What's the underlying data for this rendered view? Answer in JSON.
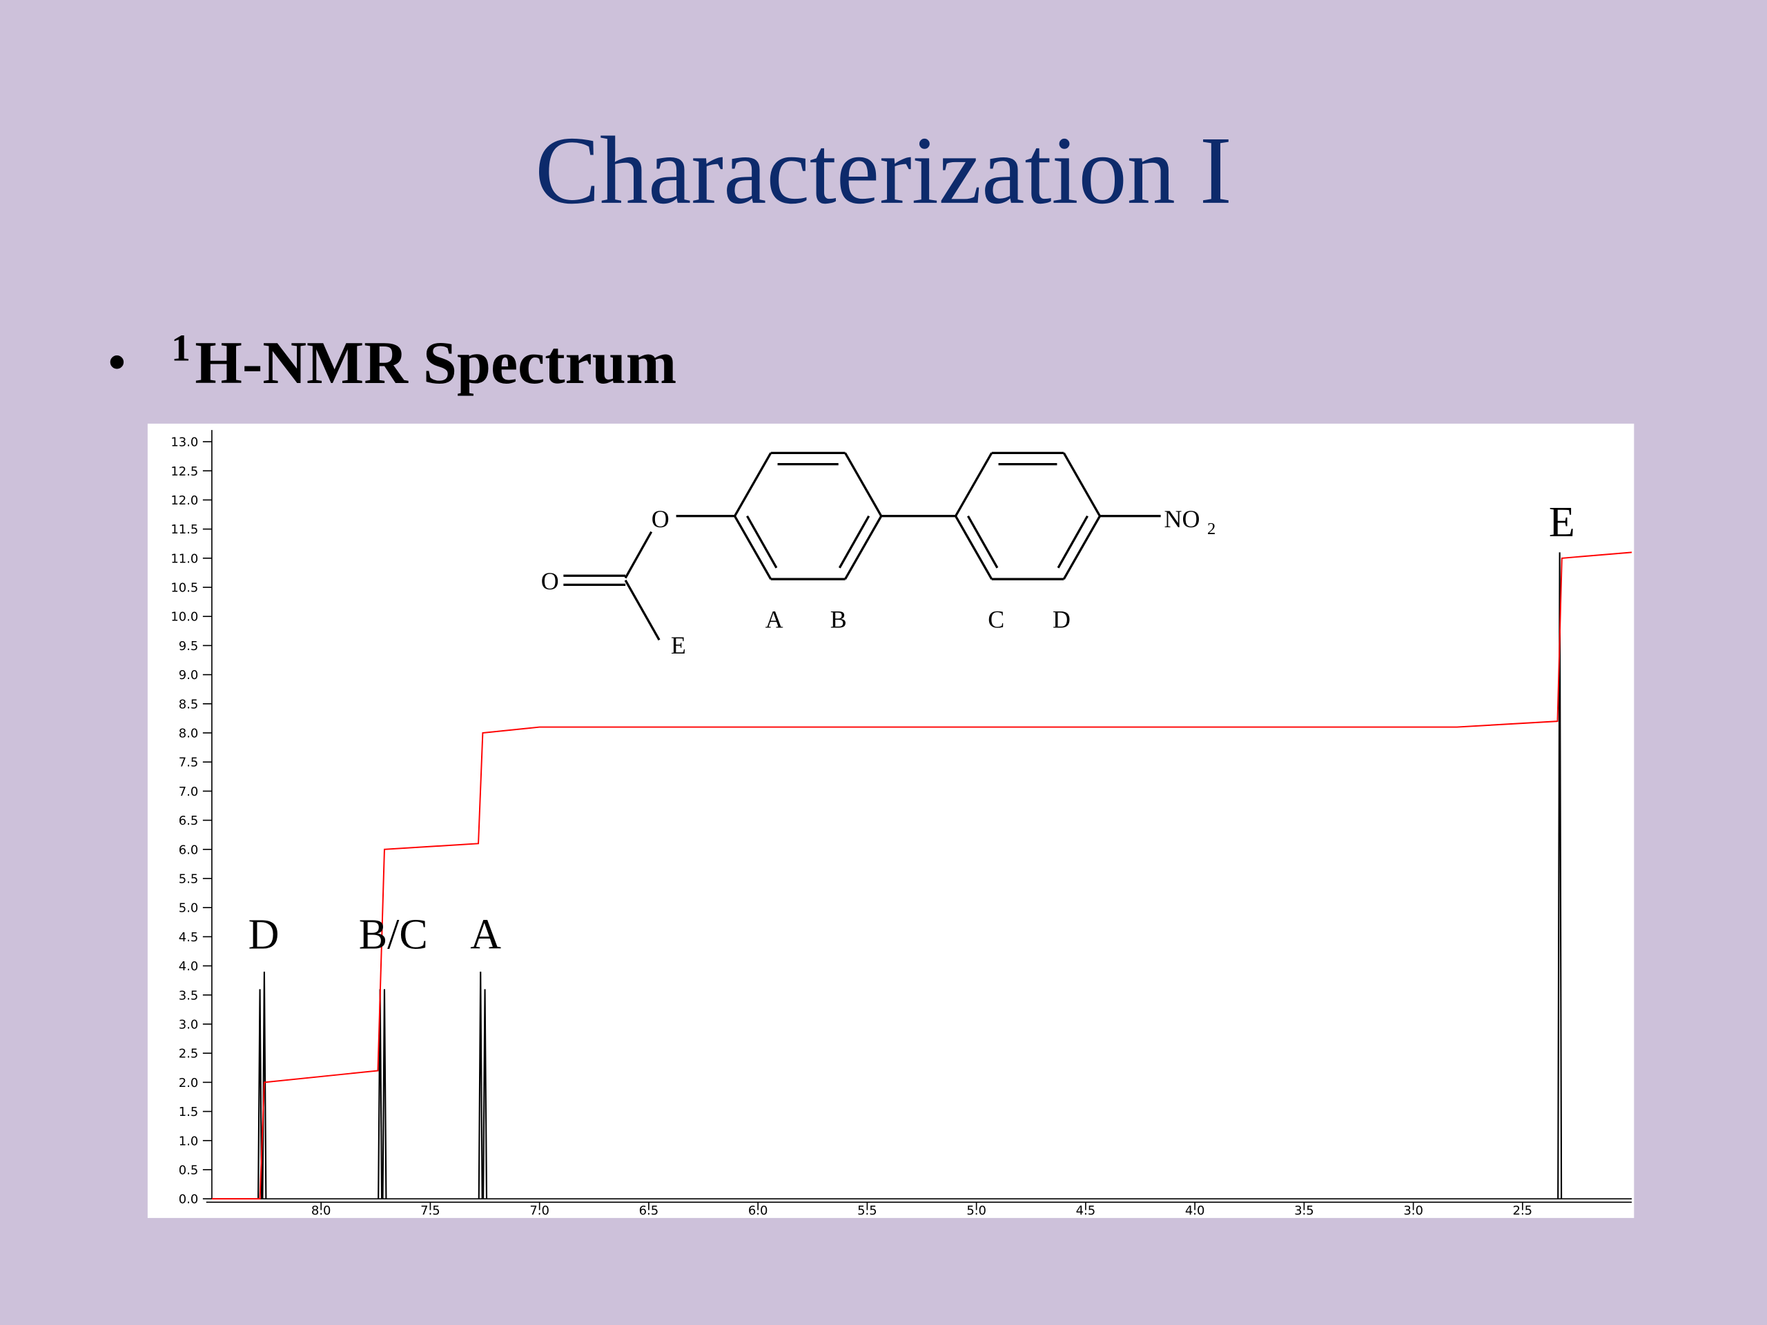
{
  "slide": {
    "title": "Characterization I",
    "bullet": {
      "superscript": "1",
      "text": "H-NMR Spectrum"
    }
  },
  "structure": {
    "labels": [
      "O",
      "O",
      "E",
      "A",
      "B",
      "C",
      "D",
      "NO",
      "2"
    ]
  },
  "chart_data": {
    "type": "nmr",
    "xlim": [
      8.5,
      2.0
    ],
    "ylim": [
      0,
      13.2
    ],
    "xticks": [
      {
        "value": 8,
        "label": "8.0"
      },
      7.5,
      {
        "value": 7,
        "label": "7.0"
      },
      6.5,
      {
        "value": 6,
        "label": "6.0"
      },
      5.5,
      {
        "value": 5,
        "label": "5.0"
      },
      4.5,
      {
        "value": 4,
        "label": "4.0"
      },
      3.5,
      {
        "value": 3,
        "label": "3.0"
      },
      2.5
    ],
    "yticks": [
      {
        "value": 0,
        "label": "0.0"
      },
      0.5,
      {
        "value": 1,
        "label": "1.0"
      },
      1.5,
      {
        "value": 2,
        "label": "2.0"
      },
      2.5,
      {
        "value": 3,
        "label": "3.0"
      },
      3.5,
      {
        "value": 4,
        "label": "4.0"
      },
      4.5,
      {
        "value": 5,
        "label": "5.0"
      },
      5.5,
      {
        "value": 6,
        "label": "6.0"
      },
      6.5,
      {
        "value": 7,
        "label": "7.0"
      },
      7.5,
      {
        "value": 8,
        "label": "8.0"
      },
      8.5,
      {
        "value": 9,
        "label": "9.0"
      },
      9.5,
      {
        "value": 10,
        "label": "10.0"
      },
      10.5,
      {
        "value": 11,
        "label": "11.0"
      },
      11.5,
      {
        "value": 12,
        "label": "12.0"
      },
      12.5,
      {
        "value": 13,
        "label": "13.0"
      }
    ],
    "spectrum_color": "#000000",
    "integral_color": "#ff0000",
    "peaks": {
      "x": [
        8.28,
        8.26,
        7.73,
        7.71,
        7.27,
        7.25,
        2.33
      ],
      "height": [
        3.6,
        3.9,
        3.6,
        3.6,
        3.9,
        3.6,
        11.1
      ]
    },
    "integral": {
      "x": [
        8.5,
        8.28,
        8.26,
        7.74,
        7.71,
        7.28,
        7.26,
        7.0,
        2.8,
        2.34,
        2.32,
        2.0
      ],
      "y": [
        0,
        0,
        2.0,
        2.2,
        6.0,
        6.1,
        8.0,
        8.1,
        8.1,
        8.2,
        11.0,
        11.1
      ]
    },
    "peak_labels": [
      "D",
      "B/C",
      "A",
      "E"
    ]
  }
}
